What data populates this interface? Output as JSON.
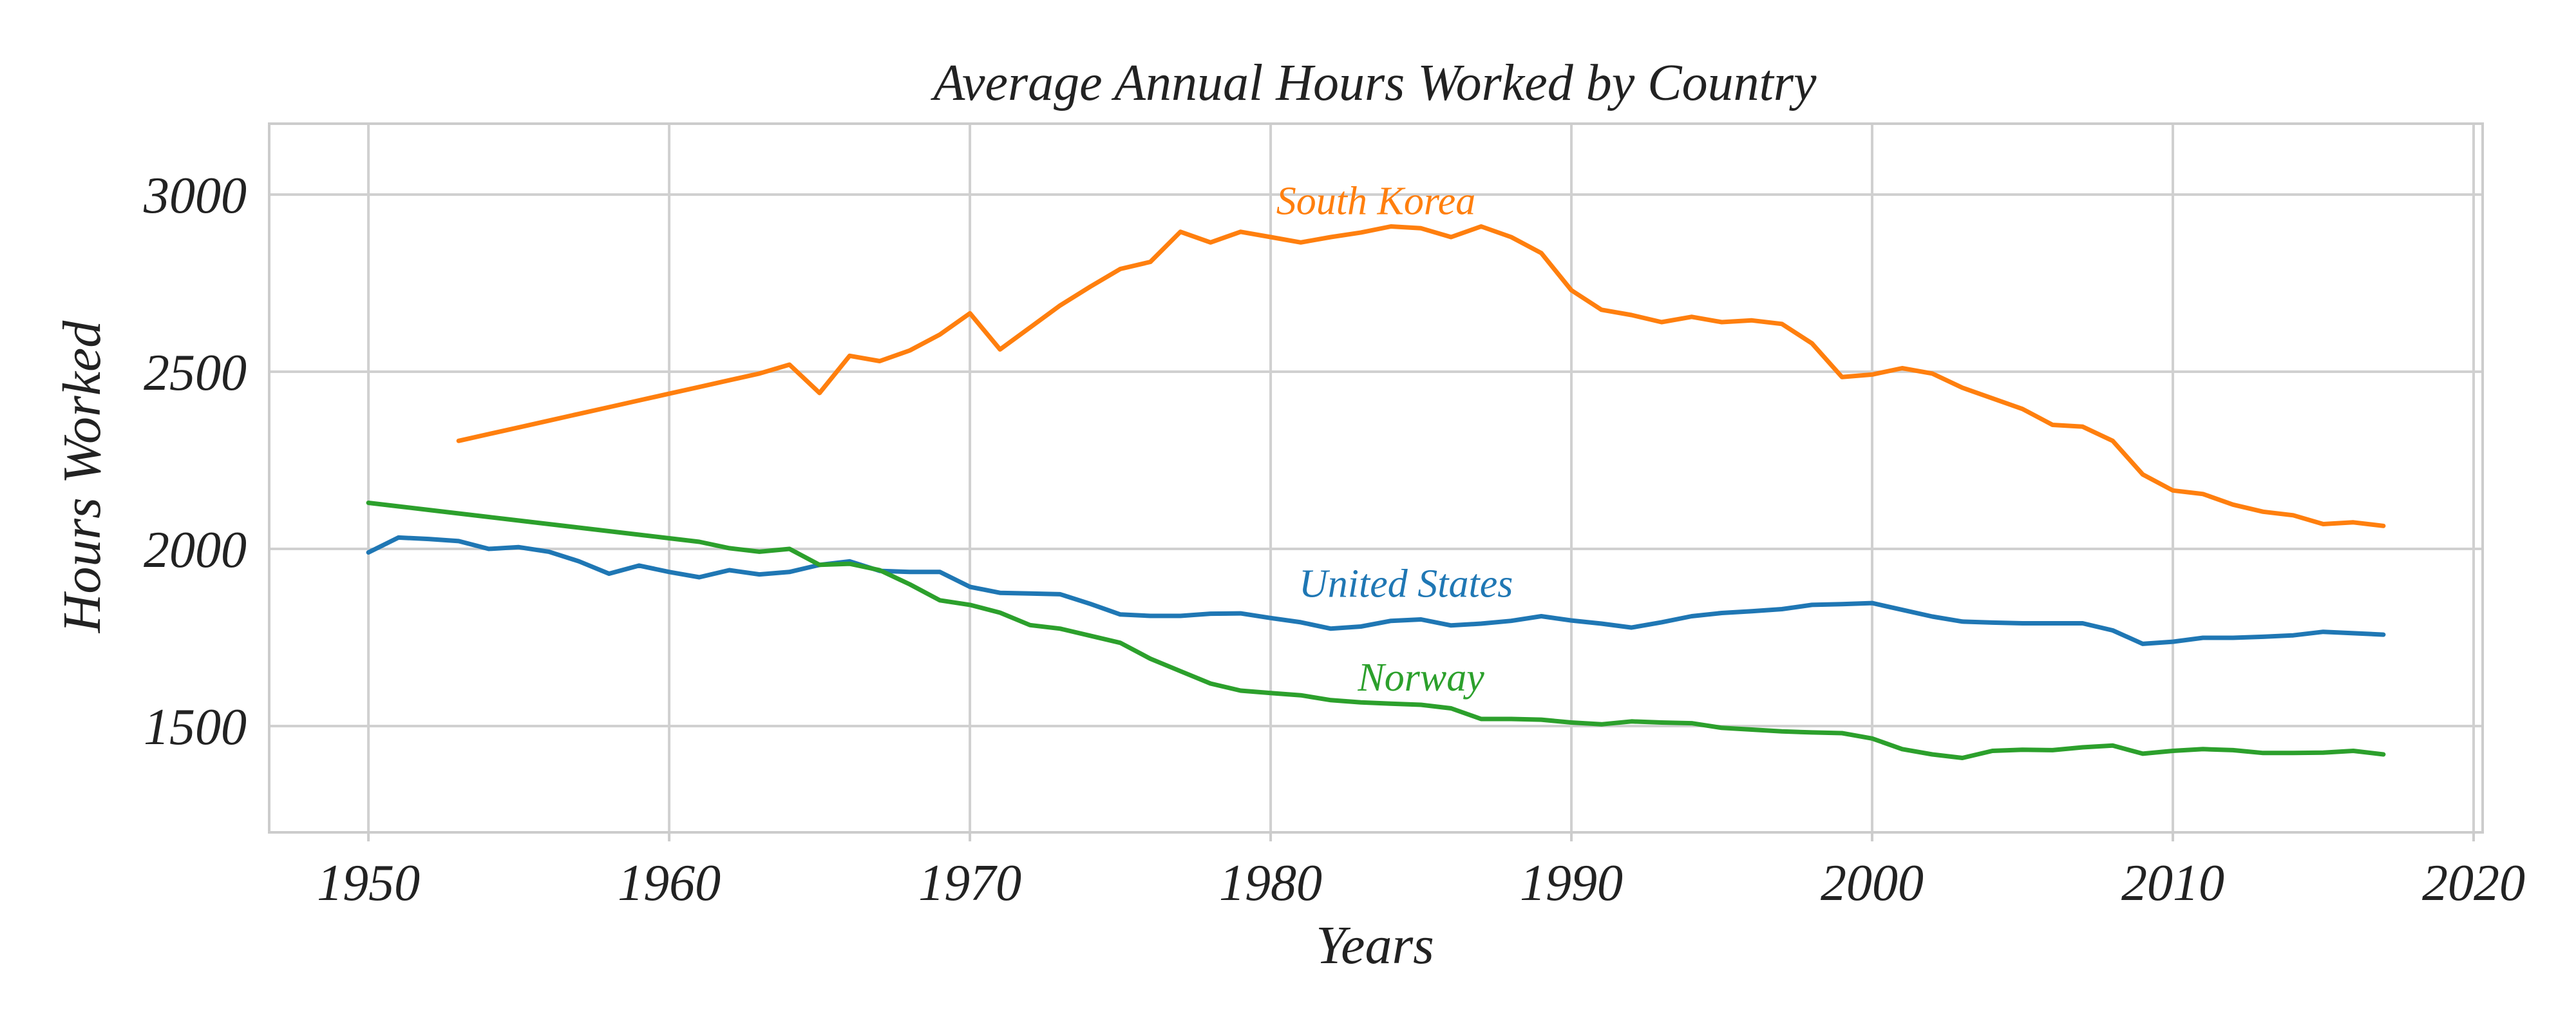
{
  "chart_data": {
    "type": "line",
    "title": "Average Annual Hours Worked by Country",
    "xlabel": "Years",
    "ylabel": "Hours Worked",
    "xlim": [
      1946.7,
      2020.3
    ],
    "ylim": [
      1200,
      3200
    ],
    "xticks": [
      1950,
      1960,
      1970,
      1980,
      1990,
      2000,
      2010,
      2020
    ],
    "xtick_labels": [
      "1950",
      "1960",
      "1970",
      "1980",
      "1990",
      "2000",
      "2010",
      "2020"
    ],
    "yticks": [
      1500,
      2000,
      2500,
      3000
    ],
    "ytick_labels": [
      "1500",
      "2000",
      "2500",
      "3000"
    ],
    "grid": true,
    "legend": "none",
    "series": [
      {
        "name": "South Korea",
        "color": "#ff7f0e",
        "label_at": [
          1983.5,
          2945
        ],
        "x": [
          1953,
          1954,
          1955,
          1956,
          1957,
          1958,
          1959,
          1960,
          1961,
          1962,
          1963,
          1964,
          1965,
          1966,
          1967,
          1968,
          1969,
          1970,
          1971,
          1972,
          1973,
          1974,
          1975,
          1976,
          1977,
          1978,
          1979,
          1980,
          1981,
          1982,
          1983,
          1984,
          1985,
          1986,
          1987,
          1988,
          1989,
          1990,
          1991,
          1992,
          1993,
          1994,
          1995,
          1996,
          1997,
          1998,
          1999,
          2000,
          2001,
          2002,
          2003,
          2004,
          2005,
          2006,
          2007,
          2008,
          2009,
          2010,
          2011,
          2012,
          2013,
          2014,
          2015,
          2016,
          2017
        ],
        "values": [
          2305,
          2324,
          2343,
          2362,
          2381,
          2400,
          2419,
          2438,
          2457,
          2476,
          2495,
          2520,
          2440,
          2545,
          2530,
          2560,
          2605,
          2665,
          2563,
          2625,
          2687,
          2740,
          2790,
          2810,
          2895,
          2865,
          2895,
          2880,
          2865,
          2880,
          2893,
          2910,
          2905,
          2880,
          2910,
          2880,
          2835,
          2730,
          2675,
          2660,
          2640,
          2655,
          2640,
          2645,
          2635,
          2580,
          2485,
          2492,
          2510,
          2495,
          2455,
          2425,
          2395,
          2350,
          2345,
          2305,
          2210,
          2165,
          2155,
          2125,
          2105,
          2095,
          2070,
          2075,
          2065
        ]
      },
      {
        "name": "United States",
        "color": "#1f77b4",
        "label_at": [
          1984.5,
          1865
        ],
        "x": [
          1950,
          1951,
          1952,
          1953,
          1954,
          1955,
          1956,
          1957,
          1958,
          1959,
          1960,
          1961,
          1962,
          1963,
          1964,
          1965,
          1966,
          1967,
          1968,
          1969,
          1970,
          1971,
          1972,
          1973,
          1974,
          1975,
          1976,
          1977,
          1978,
          1979,
          1980,
          1981,
          1982,
          1983,
          1984,
          1985,
          1986,
          1987,
          1988,
          1989,
          1990,
          1991,
          1992,
          1993,
          1994,
          1995,
          1996,
          1997,
          1998,
          1999,
          2000,
          2001,
          2002,
          2003,
          2004,
          2005,
          2006,
          2007,
          2008,
          2009,
          2010,
          2011,
          2012,
          2013,
          2014,
          2015,
          2016,
          2017
        ],
        "values": [
          1990,
          2032,
          2028,
          2022,
          2000,
          2005,
          1992,
          1965,
          1930,
          1953,
          1935,
          1920,
          1940,
          1928,
          1935,
          1955,
          1965,
          1938,
          1935,
          1935,
          1893,
          1876,
          1874,
          1872,
          1845,
          1815,
          1811,
          1811,
          1817,
          1818,
          1805,
          1793,
          1775,
          1781,
          1797,
          1801,
          1784,
          1789,
          1797,
          1810,
          1798,
          1789,
          1778,
          1793,
          1810,
          1819,
          1824,
          1830,
          1842,
          1844,
          1847,
          1828,
          1809,
          1795,
          1792,
          1790,
          1790,
          1790,
          1770,
          1732,
          1738,
          1749,
          1749,
          1752,
          1756,
          1766,
          1762,
          1758
        ]
      },
      {
        "name": "Norway",
        "color": "#2ca02c",
        "label_at": [
          1985,
          1600
        ],
        "x": [
          1950,
          1951,
          1952,
          1953,
          1954,
          1955,
          1956,
          1957,
          1958,
          1959,
          1960,
          1961,
          1962,
          1963,
          1964,
          1965,
          1966,
          1967,
          1968,
          1969,
          1970,
          1971,
          1972,
          1973,
          1974,
          1975,
          1976,
          1977,
          1978,
          1979,
          1980,
          1981,
          1982,
          1983,
          1984,
          1985,
          1986,
          1987,
          1988,
          1989,
          1990,
          1991,
          1992,
          1993,
          1994,
          1995,
          1996,
          1997,
          1998,
          1999,
          2000,
          2001,
          2002,
          2003,
          2004,
          2005,
          2006,
          2007,
          2008,
          2009,
          2010,
          2011,
          2012,
          2013,
          2014,
          2015,
          2016,
          2017
        ],
        "values": [
          2130,
          2120,
          2110,
          2100,
          2090,
          2080,
          2070,
          2060,
          2050,
          2040,
          2030,
          2020,
          2002,
          1992,
          2000,
          1955,
          1958,
          1940,
          1900,
          1855,
          1842,
          1820,
          1785,
          1775,
          1755,
          1735,
          1690,
          1655,
          1620,
          1600,
          1593,
          1587,
          1573,
          1567,
          1563,
          1560,
          1550,
          1520,
          1520,
          1518,
          1510,
          1505,
          1513,
          1510,
          1508,
          1495,
          1490,
          1485,
          1482,
          1480,
          1465,
          1435,
          1420,
          1410,
          1430,
          1433,
          1432,
          1440,
          1445,
          1422,
          1430,
          1435,
          1432,
          1424,
          1424,
          1425,
          1430,
          1420
        ]
      }
    ]
  }
}
